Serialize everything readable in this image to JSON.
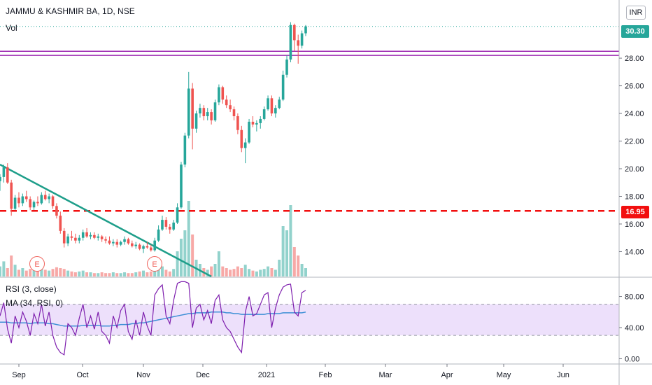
{
  "header": {
    "title": "JAMMU & KASHMIR BA, 1D, NSE",
    "volume_label": "Vol",
    "currency_label": "INR"
  },
  "rsi_panel": {
    "rsi_label": "RSI (3, close)",
    "ma_label": "MA (34, RSI, 0)"
  },
  "tags": {
    "last_price": "30.30",
    "support_level": "16.95"
  },
  "markers": {
    "earnings_1": "E",
    "earnings_2": "E"
  },
  "colors": {
    "up": "#26a69a",
    "down": "#ef5350",
    "trendline": "#1e9e8a",
    "channel": "#9c27b0",
    "support": "#f20f0f",
    "rsi": "#7e1fae",
    "rsi_ma": "#3d8fd6",
    "rsi_band": "#ede0fb"
  },
  "chart_data": [
    {
      "type": "candlestick",
      "title": "JAMMU & KASHMIR BA, 1D, NSE",
      "ylabel": "INR",
      "y_ticks": [
        "14.00",
        "16.00",
        "18.00",
        "20.00",
        "22.00",
        "24.00",
        "26.00",
        "28.00",
        "30.30"
      ],
      "x_ticks": [
        "Sep",
        "Oct",
        "Nov",
        "Dec",
        "2021",
        "Feb",
        "Mar",
        "Apr",
        "May",
        "Jun"
      ],
      "ylim": [
        12.2,
        31.5
      ],
      "grid": false,
      "last_price": 30.3,
      "support_line": 16.95,
      "channel_lines": [
        28.2,
        28.5
      ],
      "trendline": {
        "from": [
          "2020-08-27",
          20.3
        ],
        "to": [
          "2020-12-17",
          12.2
        ]
      },
      "earnings_markers": [
        "2020-09-11",
        "2020-11-05"
      ],
      "ohlc_start_date": "2020-08-27",
      "candles": [
        [
          19.1,
          19.6,
          18.4,
          19.4
        ],
        [
          19.4,
          20.3,
          19.0,
          20.1
        ],
        [
          20.1,
          20.4,
          18.9,
          19.0
        ],
        [
          19.0,
          19.2,
          16.6,
          17.1
        ],
        [
          17.1,
          18.1,
          17.0,
          17.9
        ],
        [
          17.9,
          18.3,
          17.2,
          17.5
        ],
        [
          17.5,
          18.2,
          17.3,
          18.0
        ],
        [
          18.0,
          18.4,
          17.6,
          17.8
        ],
        [
          17.8,
          18.0,
          17.0,
          17.2
        ],
        [
          17.2,
          17.7,
          17.0,
          17.6
        ],
        [
          17.6,
          18.0,
          17.3,
          17.5
        ],
        [
          17.5,
          18.3,
          17.4,
          18.1
        ],
        [
          18.1,
          18.4,
          17.7,
          17.8
        ],
        [
          17.8,
          18.2,
          17.5,
          18.0
        ],
        [
          18.0,
          18.1,
          17.1,
          17.3
        ],
        [
          17.3,
          17.5,
          16.4,
          16.6
        ],
        [
          16.6,
          16.9,
          15.3,
          15.5
        ],
        [
          15.5,
          15.7,
          14.3,
          14.6
        ],
        [
          14.6,
          15.3,
          14.4,
          15.1
        ],
        [
          15.1,
          15.5,
          14.8,
          15.0
        ],
        [
          15.0,
          15.3,
          14.6,
          14.8
        ],
        [
          14.8,
          15.2,
          14.6,
          15.0
        ],
        [
          15.0,
          15.6,
          14.8,
          15.4
        ],
        [
          15.4,
          15.7,
          15.0,
          15.1
        ],
        [
          15.1,
          15.4,
          14.9,
          15.2
        ],
        [
          15.2,
          15.4,
          14.9,
          15.0
        ],
        [
          15.0,
          15.3,
          14.8,
          15.1
        ],
        [
          15.1,
          15.2,
          14.7,
          14.9
        ],
        [
          14.9,
          15.1,
          14.6,
          14.8
        ],
        [
          14.8,
          15.1,
          14.5,
          14.6
        ],
        [
          14.6,
          14.9,
          14.4,
          14.7
        ],
        [
          14.7,
          14.9,
          14.3,
          14.5
        ],
        [
          14.5,
          14.8,
          14.4,
          14.7
        ],
        [
          14.7,
          15.1,
          14.5,
          14.9
        ],
        [
          14.9,
          15.0,
          14.5,
          14.6
        ],
        [
          14.6,
          14.8,
          14.3,
          14.4
        ],
        [
          14.4,
          14.7,
          14.2,
          14.5
        ],
        [
          14.5,
          14.6,
          14.1,
          14.2
        ],
        [
          14.2,
          14.5,
          13.9,
          14.4
        ],
        [
          14.4,
          14.7,
          14.2,
          14.3
        ],
        [
          14.3,
          14.5,
          14.0,
          14.1
        ],
        [
          14.1,
          15.0,
          14.0,
          14.8
        ],
        [
          14.8,
          15.9,
          14.7,
          15.6
        ],
        [
          15.6,
          16.6,
          15.5,
          16.3
        ],
        [
          16.3,
          16.5,
          15.6,
          15.8
        ],
        [
          15.8,
          16.0,
          15.3,
          15.6
        ],
        [
          15.6,
          16.3,
          15.5,
          16.1
        ],
        [
          16.1,
          17.5,
          16.0,
          17.2
        ],
        [
          17.2,
          20.5,
          17.1,
          20.3
        ],
        [
          20.3,
          22.6,
          20.1,
          22.4
        ],
        [
          22.4,
          27.0,
          22.2,
          25.8
        ],
        [
          25.8,
          26.2,
          21.4,
          22.9
        ],
        [
          22.9,
          24.2,
          22.6,
          24.0
        ],
        [
          24.0,
          24.7,
          23.7,
          24.4
        ],
        [
          24.4,
          24.6,
          23.5,
          23.8
        ],
        [
          23.8,
          24.4,
          23.5,
          24.1
        ],
        [
          24.1,
          24.3,
          23.2,
          23.5
        ],
        [
          23.5,
          25.0,
          23.4,
          24.8
        ],
        [
          24.8,
          26.1,
          24.6,
          25.9
        ],
        [
          25.9,
          26.0,
          24.7,
          25.0
        ],
        [
          25.0,
          25.3,
          24.4,
          24.6
        ],
        [
          24.6,
          25.0,
          24.1,
          24.3
        ],
        [
          24.3,
          24.5,
          23.5,
          23.8
        ],
        [
          23.8,
          24.0,
          22.5,
          22.8
        ],
        [
          22.8,
          23.1,
          21.2,
          21.5
        ],
        [
          21.5,
          22.2,
          20.4,
          21.9
        ],
        [
          21.9,
          23.6,
          21.8,
          23.4
        ],
        [
          23.4,
          23.8,
          23.0,
          23.2
        ],
        [
          23.2,
          23.5,
          22.7,
          23.3
        ],
        [
          23.3,
          23.8,
          22.9,
          23.6
        ],
        [
          23.6,
          24.5,
          23.5,
          24.3
        ],
        [
          24.3,
          25.3,
          24.2,
          25.1
        ],
        [
          25.1,
          25.3,
          23.8,
          24.0
        ],
        [
          24.0,
          24.6,
          23.7,
          24.4
        ],
        [
          24.4,
          25.2,
          24.3,
          25.0
        ],
        [
          25.0,
          27.1,
          24.9,
          26.8
        ],
        [
          26.8,
          28.2,
          26.6,
          27.9
        ],
        [
          27.9,
          30.6,
          27.7,
          30.4
        ],
        [
          30.4,
          30.5,
          28.5,
          29.3
        ],
        [
          29.3,
          29.7,
          27.6,
          28.9
        ],
        [
          28.9,
          30.0,
          28.7,
          29.8
        ],
        [
          29.8,
          30.4,
          29.6,
          30.3
        ]
      ],
      "volume_ratio": [
        0.12,
        0.18,
        0.1,
        0.25,
        0.14,
        0.08,
        0.1,
        0.07,
        0.09,
        0.08,
        0.1,
        0.12,
        0.08,
        0.07,
        0.09,
        0.11,
        0.1,
        0.09,
        0.07,
        0.06,
        0.05,
        0.06,
        0.07,
        0.05,
        0.05,
        0.04,
        0.04,
        0.05,
        0.04,
        0.04,
        0.05,
        0.04,
        0.04,
        0.05,
        0.04,
        0.04,
        0.05,
        0.06,
        0.07,
        0.05,
        0.06,
        0.07,
        0.1,
        0.12,
        0.08,
        0.06,
        0.09,
        0.3,
        0.45,
        0.55,
        0.9,
        0.5,
        0.2,
        0.15,
        0.1,
        0.08,
        0.12,
        0.15,
        0.3,
        0.12,
        0.1,
        0.08,
        0.09,
        0.12,
        0.1,
        0.14,
        0.09,
        0.07,
        0.06,
        0.08,
        0.09,
        0.12,
        0.1,
        0.08,
        0.2,
        0.6,
        0.55,
        0.85,
        0.35,
        0.25,
        0.15,
        0.1
      ]
    },
    {
      "type": "line",
      "title": "RSI (3, close)",
      "y_ticks": [
        "0.00",
        "40.00",
        "80.00"
      ],
      "ylim": [
        -5,
        103
      ],
      "band": [
        30,
        70
      ],
      "series": [
        {
          "name": "RSI (3, close)",
          "values": [
            55,
            72,
            38,
            20,
            55,
            40,
            60,
            48,
            30,
            58,
            45,
            70,
            42,
            60,
            30,
            15,
            8,
            5,
            45,
            40,
            30,
            52,
            70,
            40,
            55,
            38,
            60,
            35,
            30,
            20,
            55,
            40,
            62,
            70,
            35,
            25,
            50,
            30,
            60,
            42,
            30,
            82,
            90,
            95,
            55,
            45,
            75,
            97,
            99,
            99,
            97,
            40,
            65,
            70,
            50,
            62,
            45,
            75,
            82,
            50,
            40,
            35,
            25,
            15,
            8,
            60,
            80,
            55,
            58,
            70,
            82,
            85,
            40,
            65,
            82,
            92,
            95,
            96,
            60,
            55,
            85,
            88
          ]
        },
        {
          "name": "MA (34, RSI, 0)",
          "values": [
            47,
            47,
            47,
            46,
            46,
            46,
            46,
            46,
            45,
            46,
            46,
            46,
            46,
            45,
            45,
            44,
            43,
            42,
            42,
            42,
            42,
            42,
            43,
            43,
            43,
            43,
            43,
            42,
            42,
            42,
            43,
            43,
            44,
            44,
            44,
            45,
            45,
            46,
            46,
            47,
            48,
            49,
            50,
            51,
            52,
            53,
            54,
            55,
            56,
            57,
            58,
            58,
            59,
            59,
            59,
            59,
            60,
            60,
            60,
            60,
            59,
            59,
            58,
            58,
            57,
            57,
            57,
            57,
            57,
            57,
            57,
            58,
            58,
            58,
            58,
            59,
            59,
            59,
            59,
            59,
            59,
            60
          ]
        }
      ]
    }
  ]
}
